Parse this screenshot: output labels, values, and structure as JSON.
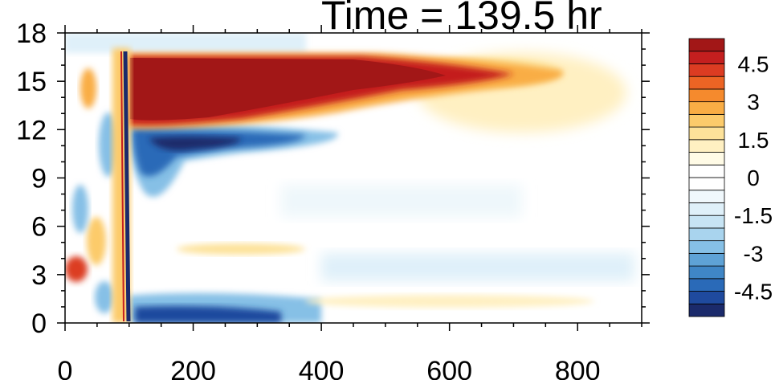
{
  "chart_data": {
    "type": "heatmap",
    "title": "Time = 139.5 hr",
    "xlabel": "",
    "ylabel": "",
    "xlim": [
      0,
      900
    ],
    "ylim": [
      0,
      18
    ],
    "x_ticks": [
      "0",
      "200",
      "400",
      "600",
      "800"
    ],
    "x_tick_values": [
      0,
      200,
      400,
      600,
      800
    ],
    "y_ticks": [
      "0",
      "3",
      "6",
      "9",
      "12",
      "15",
      "18"
    ],
    "y_tick_values": [
      0,
      3,
      6,
      9,
      12,
      15,
      18
    ],
    "colorbar": {
      "levels": [
        -5.5,
        -5,
        -4.5,
        -4,
        -3.5,
        -3,
        -2.5,
        -2,
        -1.5,
        -1,
        -0.5,
        0,
        0.5,
        1,
        1.5,
        2,
        2.5,
        3,
        3.5,
        4,
        4.5,
        5,
        5.5
      ],
      "colors": [
        "#1b2a6b",
        "#1f4a9e",
        "#2a6ab8",
        "#3f86c6",
        "#5ea2d6",
        "#86c0e6",
        "#a9d4ee",
        "#c7e4f4",
        "#dff0f9",
        "#f0f8fc",
        "#ffffff",
        "#ffffff",
        "#fffbe6",
        "#fff0c2",
        "#fde29a",
        "#fccb6b",
        "#f9ad45",
        "#f58a2d",
        "#ec6424",
        "#dc3c22",
        "#c41f1f",
        "#a21717"
      ],
      "tick_labels": [
        "4.5",
        "3",
        "1.5",
        "0",
        "-1.5",
        "-3",
        "-4.5"
      ],
      "tick_values": [
        4.5,
        3,
        1.5,
        0,
        -1.5,
        -3,
        -4.5
      ]
    },
    "features": [
      {
        "name": "upper positive jet",
        "x_range": [
          100,
          750
        ],
        "y_center": 14.8,
        "peak_value": 5.5
      },
      {
        "name": "negative band below jet",
        "x_range": [
          110,
          420
        ],
        "y_center": 11.5,
        "peak_value": -5.5
      },
      {
        "name": "surface negative band",
        "x_range": [
          110,
          400
        ],
        "y_center": 0.5,
        "peak_value": -5.5
      },
      {
        "name": "vertical front",
        "x": 100,
        "y_range": [
          0,
          17
        ],
        "peak_value": -5.5
      },
      {
        "name": "weak positive region aloft",
        "x_range": [
          560,
          800
        ],
        "y_center": 14,
        "peak_value": 1.5
      }
    ]
  }
}
